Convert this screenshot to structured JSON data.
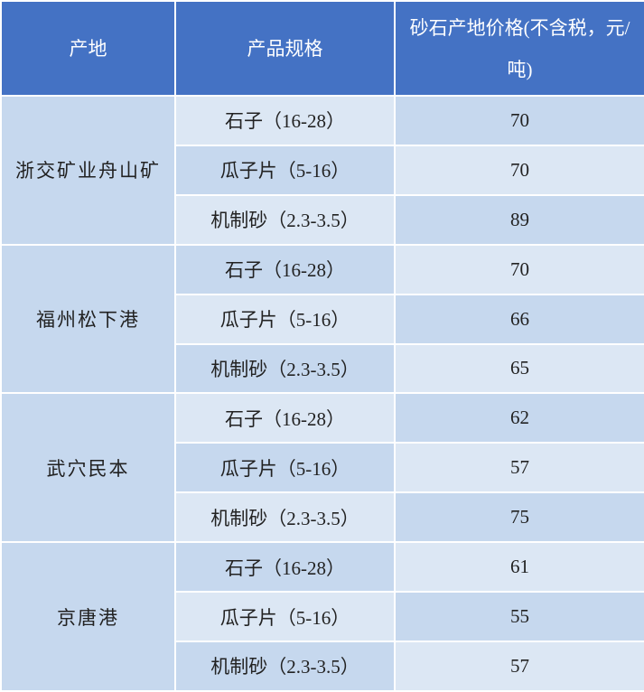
{
  "table": {
    "header": [
      "产地",
      "产品规格",
      "砂石产地价格(不含税，元/吨)"
    ],
    "groups": [
      {
        "origin": "浙交矿业舟山矿",
        "items": [
          [
            "石子（16-28）",
            70
          ],
          [
            "瓜子片（5-16）",
            70
          ],
          [
            "机制砂（2.3-3.5）",
            89
          ]
        ]
      },
      {
        "origin": "福州松下港",
        "items": [
          [
            "石子（16-28）",
            70
          ],
          [
            "瓜子片（5-16）",
            66
          ],
          [
            "机制砂（2.3-3.5）",
            65
          ]
        ]
      },
      {
        "origin": "武穴民本",
        "items": [
          [
            "石子（16-28）",
            62
          ],
          [
            "瓜子片（5-16）",
            57
          ],
          [
            "机制砂（2.3-3.5）",
            75
          ]
        ]
      },
      {
        "origin": "京唐港",
        "items": [
          [
            "石子（16-28）",
            61
          ],
          [
            "瓜子片（5-16）",
            55
          ],
          [
            "机制砂（2.3-3.5）",
            57
          ]
        ]
      }
    ]
  }
}
